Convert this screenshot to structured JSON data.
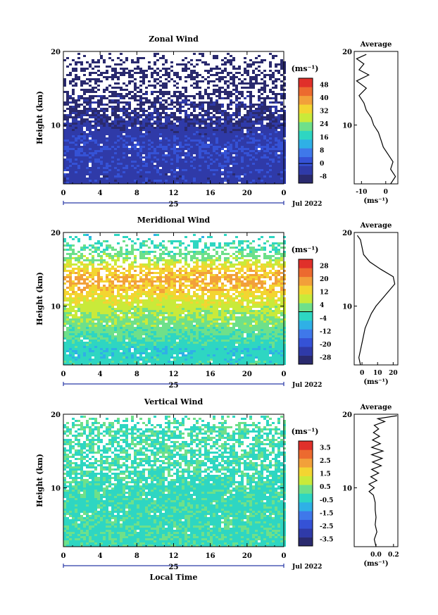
{
  "chart_data": [
    {
      "type": "heatmap",
      "title": "Zonal Wind",
      "xlabel": "",
      "ylabel": "Height (km)",
      "xticks": [
        "0",
        "4",
        "8",
        "12",
        "16",
        "20",
        "0"
      ],
      "xlim": [
        0,
        24
      ],
      "yticks": [
        "10",
        "20"
      ],
      "ylim": [
        2,
        20
      ],
      "date_day": "25",
      "date_month": "Jul 2022",
      "colorbar_unit": "(ms⁻¹)",
      "colorbar_ticks": [
        "48",
        "40",
        "32",
        "24",
        "16",
        "8",
        "0",
        "-8"
      ],
      "colorbar_range": [
        -12,
        52
      ],
      "zero_line_value": 0,
      "colors": [
        "#2a2a6e",
        "#2f3aa8",
        "#3552d6",
        "#3f78ea",
        "#2fb0e6",
        "#2ed6c2",
        "#6ee08a",
        "#c9ea3a",
        "#f3d531",
        "#f2a03a",
        "#ec6a2f",
        "#e0302a"
      ],
      "field_profile": [
        {
          "h": 2.0,
          "v": -4
        },
        {
          "h": 5.0,
          "v": -3
        },
        {
          "h": 7.0,
          "v": -2
        },
        {
          "h": 9.0,
          "v": -4
        },
        {
          "h": 10.0,
          "v": -6
        },
        {
          "h": 12.0,
          "v": -8
        },
        {
          "h": 14.0,
          "v": -9
        },
        {
          "h": 16.0,
          "v": -11
        },
        {
          "h": 18.0,
          "v": -12
        },
        {
          "h": 20.0,
          "v": -12
        }
      ],
      "missing_fraction": [
        {
          "h": 2.0,
          "f": 0.01
        },
        {
          "h": 10.0,
          "f": 0.04
        },
        {
          "h": 11.5,
          "f": 0.25
        },
        {
          "h": 13.0,
          "f": 0.35
        },
        {
          "h": 15.0,
          "f": 0.5
        },
        {
          "h": 17.0,
          "f": 0.55
        },
        {
          "h": 18.8,
          "f": 0.7
        },
        {
          "h": 20.0,
          "f": 1.0
        }
      ],
      "average": {
        "title": "Average",
        "xticks": [
          "-10",
          "0"
        ],
        "xlim": [
          -13,
          5
        ],
        "yticks": [
          "10",
          "20"
        ],
        "ylim": [
          2,
          20
        ],
        "xlabel": "(ms⁻¹)",
        "profile": [
          {
            "h": 2.0,
            "v": 2
          },
          {
            "h": 3.0,
            "v": 4
          },
          {
            "h": 4.0,
            "v": 2
          },
          {
            "h": 5.0,
            "v": 3
          },
          {
            "h": 6.0,
            "v": 1
          },
          {
            "h": 7.0,
            "v": -1
          },
          {
            "h": 8.0,
            "v": -2
          },
          {
            "h": 9.0,
            "v": -3
          },
          {
            "h": 10.0,
            "v": -5
          },
          {
            "h": 11.0,
            "v": -6
          },
          {
            "h": 12.0,
            "v": -8
          },
          {
            "h": 13.0,
            "v": -9
          },
          {
            "h": 14.0,
            "v": -11
          },
          {
            "h": 15.0,
            "v": -8
          },
          {
            "h": 16.0,
            "v": -12
          },
          {
            "h": 16.8,
            "v": -7
          },
          {
            "h": 17.5,
            "v": -11
          },
          {
            "h": 18.3,
            "v": -9
          },
          {
            "h": 19.0,
            "v": -12
          },
          {
            "h": 19.6,
            "v": -8
          }
        ]
      }
    },
    {
      "type": "heatmap",
      "title": "Meridional Wind",
      "xlabel": "",
      "ylabel": "Height (km)",
      "xticks": [
        "0",
        "4",
        "8",
        "12",
        "16",
        "20",
        "0"
      ],
      "xlim": [
        0,
        24
      ],
      "yticks": [
        "10",
        "20"
      ],
      "ylim": [
        2,
        20
      ],
      "date_day": "25",
      "date_month": "Jul 2022",
      "colorbar_unit": "(ms⁻¹)",
      "colorbar_ticks": [
        "28",
        "20",
        "12",
        "4",
        "-4",
        "-12",
        "-20",
        "-28"
      ],
      "colorbar_range": [
        -32,
        32
      ],
      "zero_line_value": 0,
      "colors": [
        "#2a2a6e",
        "#2f3aa8",
        "#3552d6",
        "#3f78ea",
        "#2fb0e6",
        "#2ed6c2",
        "#6ee08a",
        "#c9ea3a",
        "#f3d531",
        "#f2a03a",
        "#ec6a2f",
        "#e0302a"
      ],
      "field_profile": [
        {
          "h": 2.0,
          "v": -2
        },
        {
          "h": 4.0,
          "v": -4
        },
        {
          "h": 6.0,
          "v": 1
        },
        {
          "h": 8.0,
          "v": 4
        },
        {
          "h": 10.0,
          "v": 8
        },
        {
          "h": 12.0,
          "v": 14
        },
        {
          "h": 13.5,
          "v": 18
        },
        {
          "h": 15.0,
          "v": 14
        },
        {
          "h": 16.5,
          "v": 4
        },
        {
          "h": 18.0,
          "v": 0
        },
        {
          "h": 20.0,
          "v": -4
        }
      ],
      "missing_fraction": [
        {
          "h": 2.0,
          "f": 0.02
        },
        {
          "h": 10.0,
          "f": 0.05
        },
        {
          "h": 12.0,
          "f": 0.18
        },
        {
          "h": 15.0,
          "f": 0.3
        },
        {
          "h": 17.0,
          "f": 0.35
        },
        {
          "h": 18.5,
          "f": 0.6
        },
        {
          "h": 20.0,
          "f": 1.0
        }
      ],
      "average": {
        "title": "Average",
        "xticks": [
          "0",
          "10",
          "20"
        ],
        "xlim": [
          -5,
          23
        ],
        "yticks": [
          "10",
          "20"
        ],
        "ylim": [
          2,
          20
        ],
        "xlabel": "(ms⁻¹)",
        "profile": [
          {
            "h": 2.0,
            "v": -1
          },
          {
            "h": 3.0,
            "v": -2
          },
          {
            "h": 4.0,
            "v": -1
          },
          {
            "h": 5.0,
            "v": 0
          },
          {
            "h": 6.0,
            "v": 1
          },
          {
            "h": 7.0,
            "v": 2
          },
          {
            "h": 8.0,
            "v": 4
          },
          {
            "h": 9.0,
            "v": 6
          },
          {
            "h": 10.0,
            "v": 9
          },
          {
            "h": 11.0,
            "v": 13
          },
          {
            "h": 12.0,
            "v": 17
          },
          {
            "h": 13.0,
            "v": 21
          },
          {
            "h": 14.0,
            "v": 20
          },
          {
            "h": 15.0,
            "v": 12
          },
          {
            "h": 16.0,
            "v": 5
          },
          {
            "h": 17.0,
            "v": 1
          },
          {
            "h": 18.0,
            "v": 0
          },
          {
            "h": 19.0,
            "v": -1
          },
          {
            "h": 19.6,
            "v": -3
          }
        ]
      }
    },
    {
      "type": "heatmap",
      "title": "Vertical Wind",
      "xlabel": "Local Time",
      "ylabel": "Height (km)",
      "xticks": [
        "0",
        "4",
        "8",
        "12",
        "16",
        "20",
        "0"
      ],
      "xlim": [
        0,
        24
      ],
      "yticks": [
        "10",
        "20"
      ],
      "ylim": [
        2,
        20
      ],
      "date_day": "25",
      "date_month": "Jul 2022",
      "colorbar_unit": "(ms⁻¹)",
      "colorbar_ticks": [
        "3.5",
        "2.5",
        "1.5",
        "0.5",
        "-0.5",
        "-1.5",
        "-2.5",
        "-3.5"
      ],
      "colorbar_range": [
        -4,
        4
      ],
      "zero_line_value": null,
      "colors": [
        "#2a2a6e",
        "#2f3aa8",
        "#3552d6",
        "#3f78ea",
        "#2fb0e6",
        "#2ed6c2",
        "#6ee08a",
        "#c9ea3a",
        "#f3d531",
        "#f2a03a",
        "#ec6a2f",
        "#e0302a"
      ],
      "field_profile": [
        {
          "h": 2.0,
          "v": -0.1
        },
        {
          "h": 10.0,
          "v": -0.2
        },
        {
          "h": 14.0,
          "v": -0.1
        },
        {
          "h": 20.0,
          "v": 0.0
        }
      ],
      "missing_fraction": [
        {
          "h": 2.0,
          "f": 0.0
        },
        {
          "h": 10.0,
          "f": 0.05
        },
        {
          "h": 12.0,
          "f": 0.25
        },
        {
          "h": 15.0,
          "f": 0.3
        },
        {
          "h": 18.0,
          "f": 0.35
        },
        {
          "h": 20.0,
          "f": 0.9
        }
      ],
      "average": {
        "title": "Average",
        "xticks": [
          "0.0",
          "0.2"
        ],
        "xlim": [
          -0.25,
          0.25
        ],
        "yticks": [
          "10",
          "20"
        ],
        "ylim": [
          2,
          20
        ],
        "xlabel": "(ms⁻¹)",
        "profile": [
          {
            "h": 2.0,
            "v": 0.0
          },
          {
            "h": 3.0,
            "v": -0.02
          },
          {
            "h": 4.0,
            "v": 0.01
          },
          {
            "h": 5.0,
            "v": -0.01
          },
          {
            "h": 6.0,
            "v": 0.0
          },
          {
            "h": 7.0,
            "v": -0.01
          },
          {
            "h": 8.0,
            "v": -0.01
          },
          {
            "h": 9.0,
            "v": -0.03
          },
          {
            "h": 9.5,
            "v": -0.08
          },
          {
            "h": 10.0,
            "v": -0.02
          },
          {
            "h": 10.5,
            "v": -0.08
          },
          {
            "h": 11.0,
            "v": 0.01
          },
          {
            "h": 11.5,
            "v": -0.06
          },
          {
            "h": 12.0,
            "v": 0.03
          },
          {
            "h": 12.5,
            "v": -0.05
          },
          {
            "h": 13.0,
            "v": 0.06
          },
          {
            "h": 13.5,
            "v": -0.04
          },
          {
            "h": 14.0,
            "v": 0.07
          },
          {
            "h": 14.5,
            "v": -0.05
          },
          {
            "h": 15.0,
            "v": 0.08
          },
          {
            "h": 15.5,
            "v": -0.05
          },
          {
            "h": 16.0,
            "v": 0.05
          },
          {
            "h": 16.5,
            "v": -0.04
          },
          {
            "h": 17.0,
            "v": 0.04
          },
          {
            "h": 17.5,
            "v": -0.03
          },
          {
            "h": 18.0,
            "v": 0.03
          },
          {
            "h": 18.5,
            "v": -0.02
          },
          {
            "h": 19.0,
            "v": 0.1
          },
          {
            "h": 19.4,
            "v": 0.02
          },
          {
            "h": 19.8,
            "v": 0.24
          }
        ]
      }
    }
  ]
}
